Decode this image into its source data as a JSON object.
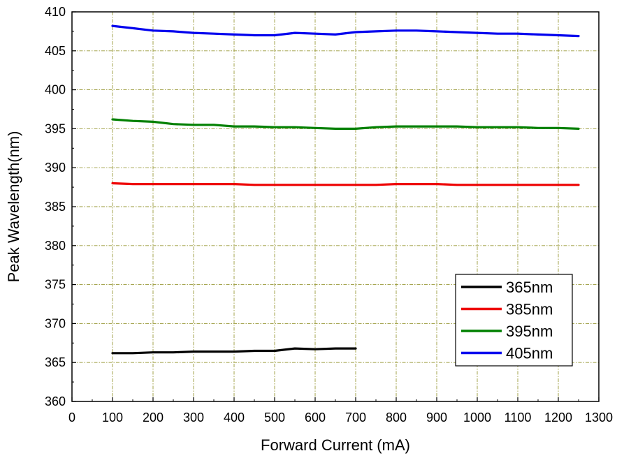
{
  "chart_data": {
    "type": "line",
    "xlabel": "Forward Current (mA)",
    "ylabel": "Peak Wavelength(nm)",
    "xlim": [
      0,
      1300
    ],
    "ylim": [
      360,
      410
    ],
    "xticks": [
      0,
      100,
      200,
      300,
      400,
      500,
      600,
      700,
      800,
      900,
      1000,
      1100,
      1200,
      1300
    ],
    "yticks": [
      360,
      365,
      370,
      375,
      380,
      385,
      390,
      395,
      400,
      405,
      410
    ],
    "xtick_labels": [
      "0",
      "100",
      "200",
      "300",
      "400",
      "500",
      "600",
      "700",
      "800",
      "900",
      "1000",
      "1100",
      "1200",
      "1300"
    ],
    "ytick_labels": [
      "360",
      "365",
      "370",
      "375",
      "380",
      "385",
      "390",
      "395",
      "400",
      "405",
      "410"
    ],
    "grid": true,
    "grid_style": "dash-dot olive",
    "legend_position": "bottom-right",
    "series": [
      {
        "name": "365nm",
        "color": "#000000",
        "x": [
          100,
          150,
          200,
          250,
          300,
          350,
          400,
          450,
          500,
          550,
          600,
          650,
          700
        ],
        "y": [
          366.2,
          366.2,
          366.3,
          366.3,
          366.4,
          366.4,
          366.4,
          366.5,
          366.5,
          366.8,
          366.7,
          366.8,
          366.8
        ]
      },
      {
        "name": "385nm",
        "color": "#ee0000",
        "x": [
          100,
          150,
          200,
          250,
          300,
          350,
          400,
          450,
          500,
          550,
          600,
          650,
          700,
          750,
          800,
          850,
          900,
          950,
          1000,
          1050,
          1100,
          1150,
          1200,
          1250
        ],
        "y": [
          388.0,
          387.9,
          387.9,
          387.9,
          387.9,
          387.9,
          387.9,
          387.8,
          387.8,
          387.8,
          387.8,
          387.8,
          387.8,
          387.8,
          387.9,
          387.9,
          387.9,
          387.8,
          387.8,
          387.8,
          387.8,
          387.8,
          387.8,
          387.8
        ]
      },
      {
        "name": "395nm",
        "color": "#008000",
        "x": [
          100,
          150,
          200,
          250,
          300,
          350,
          400,
          450,
          500,
          550,
          600,
          650,
          700,
          750,
          800,
          850,
          900,
          950,
          1000,
          1050,
          1100,
          1150,
          1200,
          1250
        ],
        "y": [
          396.2,
          396.0,
          395.9,
          395.6,
          395.5,
          395.5,
          395.3,
          395.3,
          395.2,
          395.2,
          395.1,
          395.0,
          395.0,
          395.2,
          395.3,
          395.3,
          395.3,
          395.3,
          395.2,
          395.2,
          395.2,
          395.1,
          395.1,
          395.0
        ]
      },
      {
        "name": "405nm",
        "color": "#0000ee",
        "x": [
          100,
          150,
          200,
          250,
          300,
          350,
          400,
          450,
          500,
          550,
          600,
          650,
          700,
          750,
          800,
          850,
          900,
          950,
          1000,
          1050,
          1100,
          1150,
          1200,
          1250
        ],
        "y": [
          408.2,
          407.9,
          407.6,
          407.5,
          407.3,
          407.2,
          407.1,
          407.0,
          407.0,
          407.3,
          407.2,
          407.1,
          407.4,
          407.5,
          407.6,
          407.6,
          407.5,
          407.4,
          407.3,
          407.2,
          407.2,
          407.1,
          407.0,
          406.9
        ]
      }
    ]
  }
}
